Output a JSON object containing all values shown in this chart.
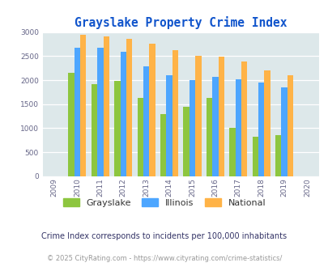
{
  "title": "Grayslake Property Crime Index",
  "years": [
    2009,
    2010,
    2011,
    2012,
    2013,
    2014,
    2015,
    2016,
    2017,
    2018,
    2019,
    2020
  ],
  "grayslake": [
    null,
    2150,
    1920,
    1980,
    1630,
    1300,
    1450,
    1630,
    1010,
    820,
    860,
    null
  ],
  "illinois": [
    null,
    2680,
    2680,
    2590,
    2280,
    2100,
    2000,
    2060,
    2020,
    1950,
    1850,
    null
  ],
  "national": [
    null,
    2940,
    2910,
    2860,
    2750,
    2620,
    2500,
    2480,
    2380,
    2200,
    2100,
    null
  ],
  "grayslake_color": "#8dc63f",
  "illinois_color": "#4da6ff",
  "national_color": "#ffb347",
  "bg_color": "#dde8ea",
  "ylim": [
    0,
    3000
  ],
  "yticks": [
    0,
    500,
    1000,
    1500,
    2000,
    2500,
    3000
  ],
  "subtitle": "Crime Index corresponds to incidents per 100,000 inhabitants",
  "footer": "© 2025 CityRating.com - https://www.cityrating.com/crime-statistics/",
  "title_color": "#1155cc",
  "subtitle_color": "#333366",
  "footer_color": "#999999",
  "legend_labels": [
    "Grayslake",
    "Illinois",
    "National"
  ]
}
